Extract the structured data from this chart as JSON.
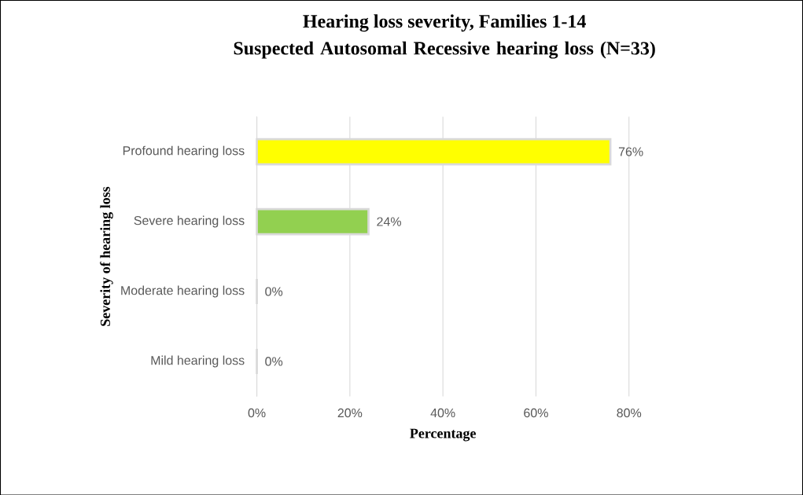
{
  "chart_data": {
    "type": "bar",
    "orientation": "horizontal",
    "title": "Hearing loss severity, Families 1-14",
    "subtitle": "Suspected Autosomal Recessive hearing loss (N=33)",
    "xlabel": "Percentage",
    "ylabel": "Severity of hearing loss",
    "categories": [
      "Profound hearing loss",
      "Severe hearing loss",
      "Moderate hearing loss",
      "Mild hearing loss"
    ],
    "values": [
      76,
      24,
      0,
      0
    ],
    "colors": [
      "#ffff00",
      "#92d050",
      null,
      null
    ],
    "value_labels": [
      "76%",
      "24%",
      "0%",
      "0%"
    ],
    "xlim": [
      0,
      80
    ],
    "xticks": [
      {
        "value": 0,
        "label": "0%"
      },
      {
        "value": 20,
        "label": "20%"
      },
      {
        "value": 40,
        "label": "40%"
      },
      {
        "value": 60,
        "label": "60%"
      },
      {
        "value": 80,
        "label": "80%"
      }
    ],
    "grid": "x"
  }
}
